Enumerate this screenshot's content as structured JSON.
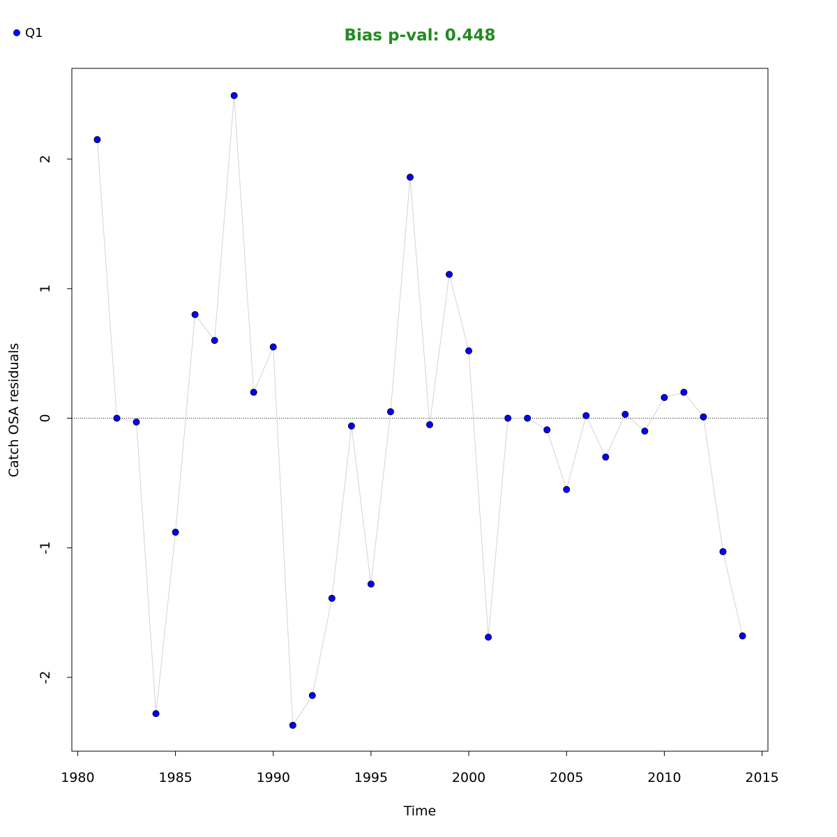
{
  "chart_data": {
    "type": "scatter",
    "title": "Bias p-val: 0.448",
    "title_color": "#228B22",
    "xlabel": "Time",
    "ylabel": "Catch OSA residuals",
    "xlim": [
      1979.7,
      2015.3
    ],
    "ylim": [
      -2.57,
      2.7
    ],
    "x_ticks": [
      1980,
      1985,
      1990,
      1995,
      2000,
      2005,
      2010,
      2015
    ],
    "y_ticks": [
      -2,
      -1,
      0,
      1,
      2
    ],
    "reference_line": 0,
    "point_color": "#0000FF",
    "line_color": "#D3D3D3",
    "legend": {
      "placement": "top-left",
      "entries": [
        {
          "label": "Q1",
          "color": "#0000FF"
        }
      ]
    },
    "series": [
      {
        "name": "Q1",
        "x": [
          1981,
          1982,
          1983,
          1984,
          1985,
          1986,
          1987,
          1988,
          1989,
          1990,
          1991,
          1992,
          1993,
          1994,
          1995,
          1996,
          1997,
          1998,
          1999,
          2000,
          2001,
          2002,
          2003,
          2004,
          2005,
          2006,
          2007,
          2008,
          2009,
          2010,
          2011,
          2012,
          2013,
          2014
        ],
        "y": [
          2.15,
          0.0,
          -0.03,
          -2.28,
          -0.88,
          0.8,
          0.6,
          2.49,
          0.2,
          0.55,
          -2.37,
          -2.14,
          -1.39,
          -0.06,
          -1.28,
          0.05,
          1.86,
          -0.05,
          1.11,
          0.52,
          -1.69,
          0.0,
          0.0,
          -0.09,
          -0.55,
          0.02,
          -0.3,
          0.03,
          -0.1,
          0.16,
          0.2,
          0.01,
          -1.03,
          -1.68
        ]
      }
    ]
  }
}
